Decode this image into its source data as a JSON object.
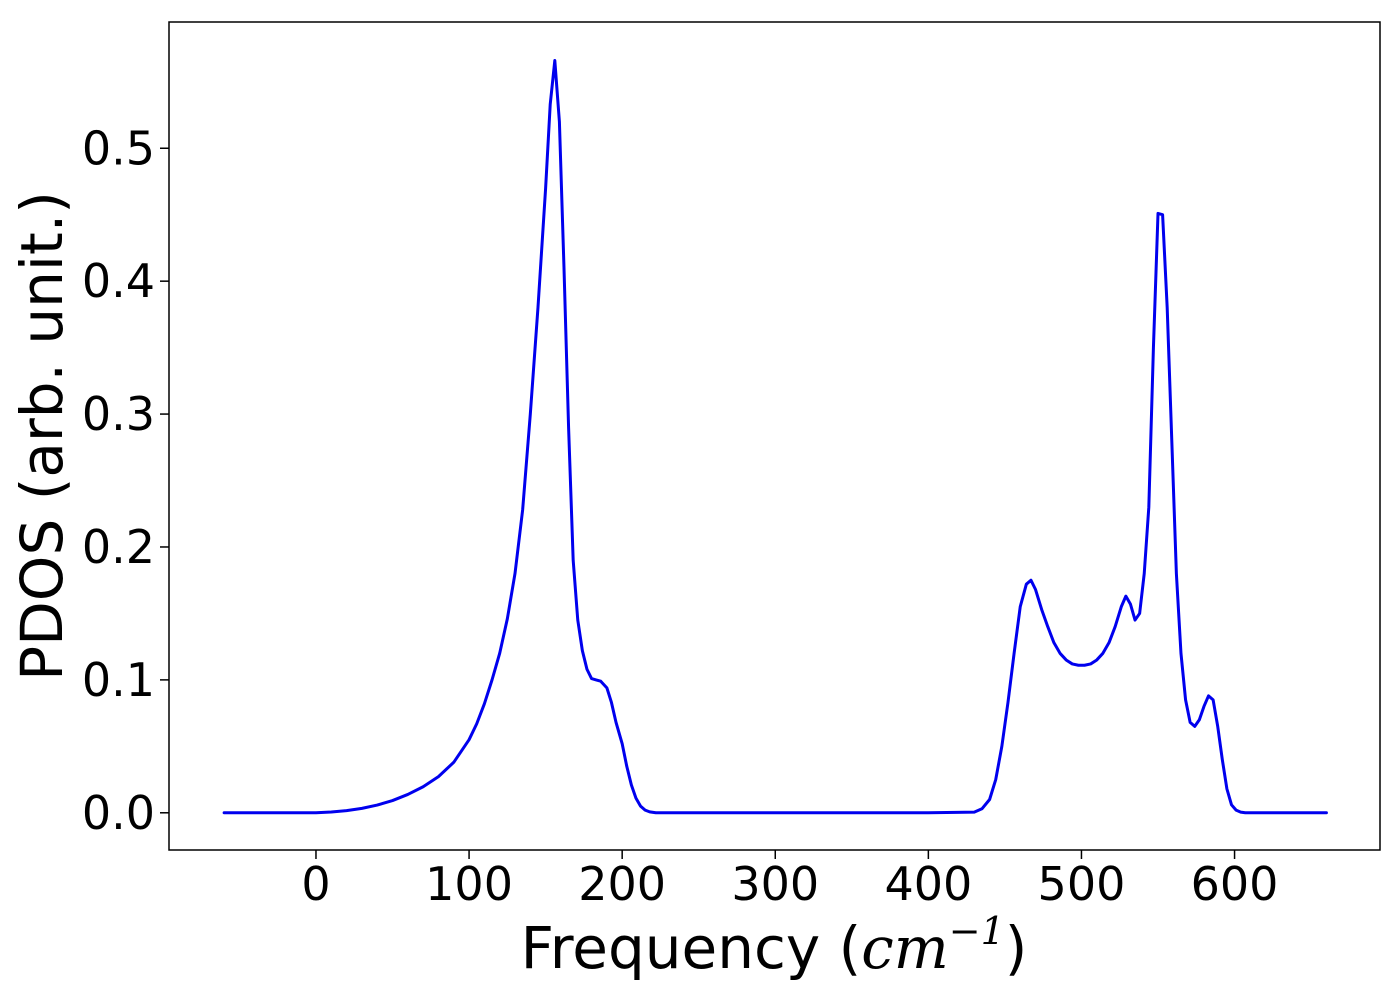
{
  "chart_data": {
    "type": "line",
    "title": "",
    "xlabel": {
      "prefix": "Frequency (",
      "math_base": "cm",
      "math_sup": "−1",
      "suffix": ")"
    },
    "ylabel": "PDOS (arb. unit.)",
    "xlim": [
      -96,
      695
    ],
    "ylim": [
      -0.028,
      0.595
    ],
    "x_ticks": [
      0,
      100,
      200,
      300,
      400,
      500,
      600
    ],
    "x_tick_labels": [
      "0",
      "100",
      "200",
      "300",
      "400",
      "500",
      "600"
    ],
    "y_ticks": [
      0.0,
      0.1,
      0.2,
      0.3,
      0.4,
      0.5
    ],
    "y_tick_labels": [
      "0.0",
      "0.1",
      "0.2",
      "0.3",
      "0.4",
      "0.5"
    ],
    "grid": false,
    "legend": "none",
    "series_color": "#0000ee",
    "series": [
      {
        "x": [
          -60,
          -40,
          -20,
          0,
          10,
          20,
          30,
          40,
          50,
          60,
          70,
          80,
          90,
          100,
          105,
          110,
          115,
          120,
          125,
          130,
          135,
          140,
          145,
          150,
          153,
          156,
          159,
          162,
          165,
          168,
          171,
          174,
          177,
          180,
          183,
          186,
          190,
          193,
          196,
          200,
          203,
          206,
          209,
          212,
          215,
          218,
          222,
          250,
          300,
          350,
          400,
          430,
          435,
          440,
          444,
          448,
          452,
          456,
          460,
          464,
          467,
          470,
          474,
          478,
          482,
          486,
          490,
          494,
          498,
          502,
          506,
          510,
          514,
          518,
          522,
          526,
          529,
          532,
          535,
          538,
          541,
          544,
          547,
          550,
          553,
          556,
          559,
          562,
          565,
          568,
          571,
          574,
          577,
          580,
          583,
          586,
          589,
          592,
          595,
          598,
          601,
          604,
          607,
          610,
          613,
          616,
          620,
          630,
          660
        ],
        "y": [
          0.0,
          0.0,
          0.0,
          0.0,
          0.0006,
          0.0016,
          0.0033,
          0.0058,
          0.0092,
          0.0138,
          0.0196,
          0.0272,
          0.038,
          0.055,
          0.067,
          0.082,
          0.1,
          0.12,
          0.146,
          0.18,
          0.228,
          0.3,
          0.38,
          0.47,
          0.533,
          0.566,
          0.52,
          0.41,
          0.29,
          0.19,
          0.145,
          0.122,
          0.108,
          0.101,
          0.1,
          0.099,
          0.094,
          0.083,
          0.068,
          0.052,
          0.035,
          0.021,
          0.011,
          0.005,
          0.002,
          0.0007,
          0.0,
          0.0,
          0.0,
          0.0,
          0.0,
          0.0005,
          0.003,
          0.01,
          0.025,
          0.05,
          0.083,
          0.12,
          0.155,
          0.172,
          0.175,
          0.168,
          0.153,
          0.14,
          0.128,
          0.12,
          0.115,
          0.112,
          0.111,
          0.111,
          0.112,
          0.115,
          0.12,
          0.128,
          0.14,
          0.155,
          0.163,
          0.157,
          0.145,
          0.15,
          0.18,
          0.23,
          0.35,
          0.451,
          0.45,
          0.38,
          0.28,
          0.18,
          0.12,
          0.085,
          0.068,
          0.065,
          0.07,
          0.08,
          0.088,
          0.085,
          0.065,
          0.04,
          0.018,
          0.006,
          0.002,
          0.0005,
          0.0,
          0.0,
          0.0,
          0.0,
          0.0,
          0.0,
          0.0
        ]
      }
    ]
  }
}
